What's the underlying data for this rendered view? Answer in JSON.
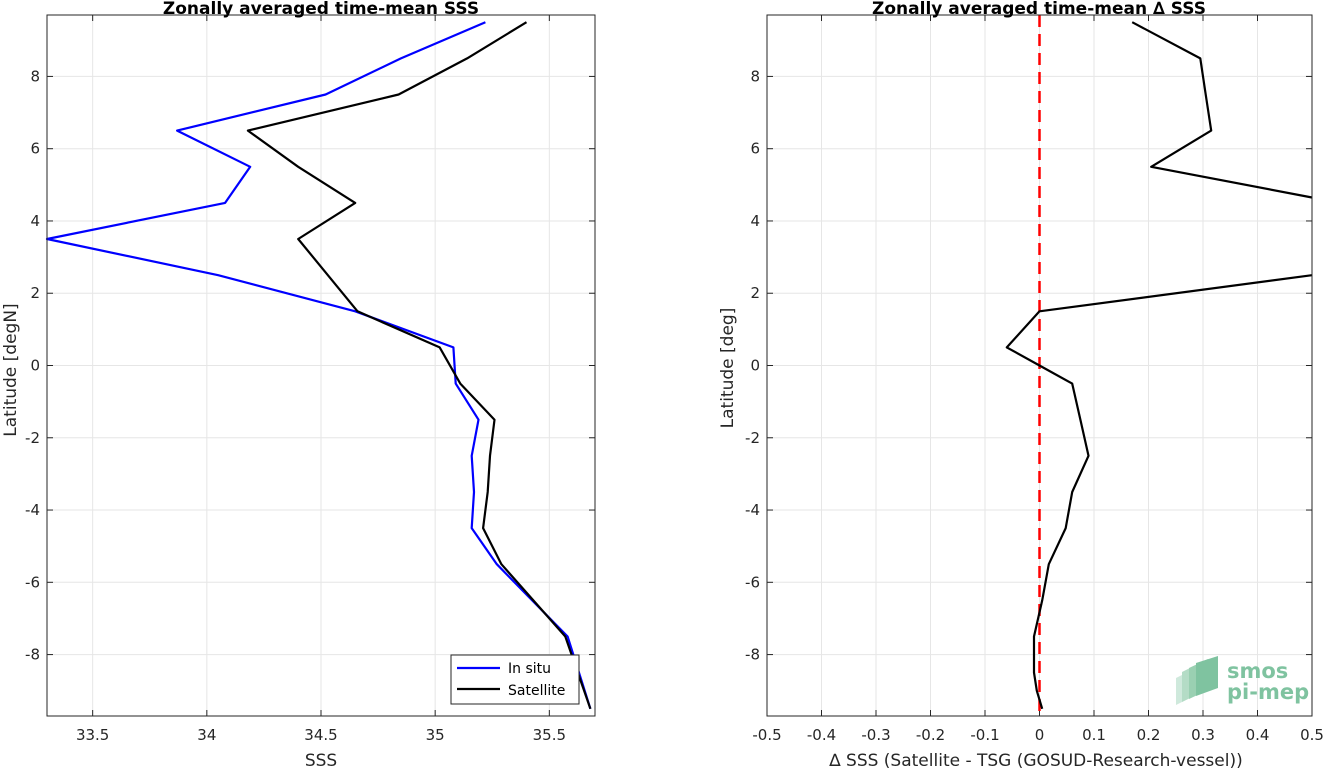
{
  "chart_data": [
    {
      "type": "line",
      "title": "Zonally averaged time-mean SSS",
      "xlabel": "SSS",
      "ylabel": "Latitude [degN]",
      "xlim": [
        33.3,
        35.7
      ],
      "ylim": [
        -9.7,
        9.7
      ],
      "xticks": [
        33.5,
        34,
        34.5,
        35,
        35.5
      ],
      "xtick_labels": [
        "33.5",
        "34",
        "34.5",
        "35",
        "35.5"
      ],
      "yticks": [
        -8,
        -6,
        -4,
        -2,
        0,
        2,
        4,
        6,
        8
      ],
      "ytick_labels": [
        "-8",
        "-6",
        "-4",
        "-2",
        "0",
        "2",
        "4",
        "6",
        "8"
      ],
      "grid": true,
      "legend": "bottom-right",
      "series": [
        {
          "name": "In situ",
          "color": "#0000ff",
          "x": [
            35.22,
            34.85,
            34.52,
            33.87,
            34.19,
            34.08,
            33.3,
            34.05,
            34.65,
            35.08,
            35.09,
            35.19,
            35.16,
            35.17,
            35.16,
            35.27,
            35.58,
            35.68
          ],
          "y": [
            9.5,
            8.5,
            7.5,
            6.5,
            5.5,
            4.5,
            3.5,
            2.5,
            1.5,
            0.5,
            -0.5,
            -1.5,
            -2.5,
            -3.5,
            -4.5,
            -5.5,
            -7.5,
            -9.5
          ]
        },
        {
          "name": "Satellite",
          "color": "#000000",
          "x": [
            35.4,
            35.14,
            34.84,
            34.18,
            34.4,
            34.65,
            34.4,
            34.66,
            35.02,
            35.11,
            35.26,
            35.24,
            35.23,
            35.21,
            35.29,
            35.57,
            35.68
          ],
          "y": [
            9.5,
            8.5,
            7.5,
            6.5,
            5.5,
            4.5,
            3.5,
            1.5,
            0.5,
            -0.5,
            -1.5,
            -2.5,
            -3.5,
            -4.5,
            -5.5,
            -7.5,
            -9.5
          ]
        }
      ]
    },
    {
      "type": "line",
      "title": "Zonally averaged time-mean ∆ SSS",
      "xlabel": "∆ SSS (Satellite - TSG (GOSUD-Research-vessel))",
      "ylabel": "Latitude [deg]",
      "xlim": [
        -0.5,
        0.5
      ],
      "ylim": [
        -9.7,
        9.7
      ],
      "xticks": [
        -0.5,
        -0.4,
        -0.3,
        -0.2,
        -0.1,
        0,
        0.1,
        0.2,
        0.3,
        0.4,
        0.5
      ],
      "xtick_labels": [
        "-0.5",
        "-0.4",
        "-0.3",
        "-0.2",
        "-0.1",
        "0",
        "0.1",
        "0.2",
        "0.3",
        "0.4",
        "0.5"
      ],
      "yticks": [
        -8,
        -6,
        -4,
        -2,
        0,
        2,
        4,
        6,
        8
      ],
      "ytick_labels": [
        "-8",
        "-6",
        "-4",
        "-2",
        "0",
        "2",
        "4",
        "6",
        "8"
      ],
      "grid": true,
      "reference_line": {
        "x": 0,
        "color": "#ff0000",
        "style": "dashed"
      },
      "series": [
        {
          "color": "#000000",
          "x": [
            0.17,
            0.295,
            0.305,
            0.315,
            0.205,
            0.5
          ],
          "y": [
            9.5,
            8.5,
            7.5,
            6.5,
            5.5,
            4.65
          ]
        },
        {
          "color": "#000000",
          "x": [
            0.5,
            0.0,
            -0.06,
            0.0,
            0.06,
            0.075,
            0.09,
            0.06,
            0.048,
            0.017,
            0.005,
            -0.01,
            -0.01,
            -0.005,
            0.005
          ],
          "y": [
            2.5,
            1.5,
            0.5,
            0.0,
            -0.5,
            -1.5,
            -2.5,
            -3.5,
            -4.5,
            -5.5,
            -6.5,
            -7.5,
            -8.5,
            -9.0,
            -9.5
          ]
        }
      ]
    }
  ],
  "logo": {
    "line1": "smos",
    "line2": "pi-mep",
    "color": "#7fc3a0"
  }
}
